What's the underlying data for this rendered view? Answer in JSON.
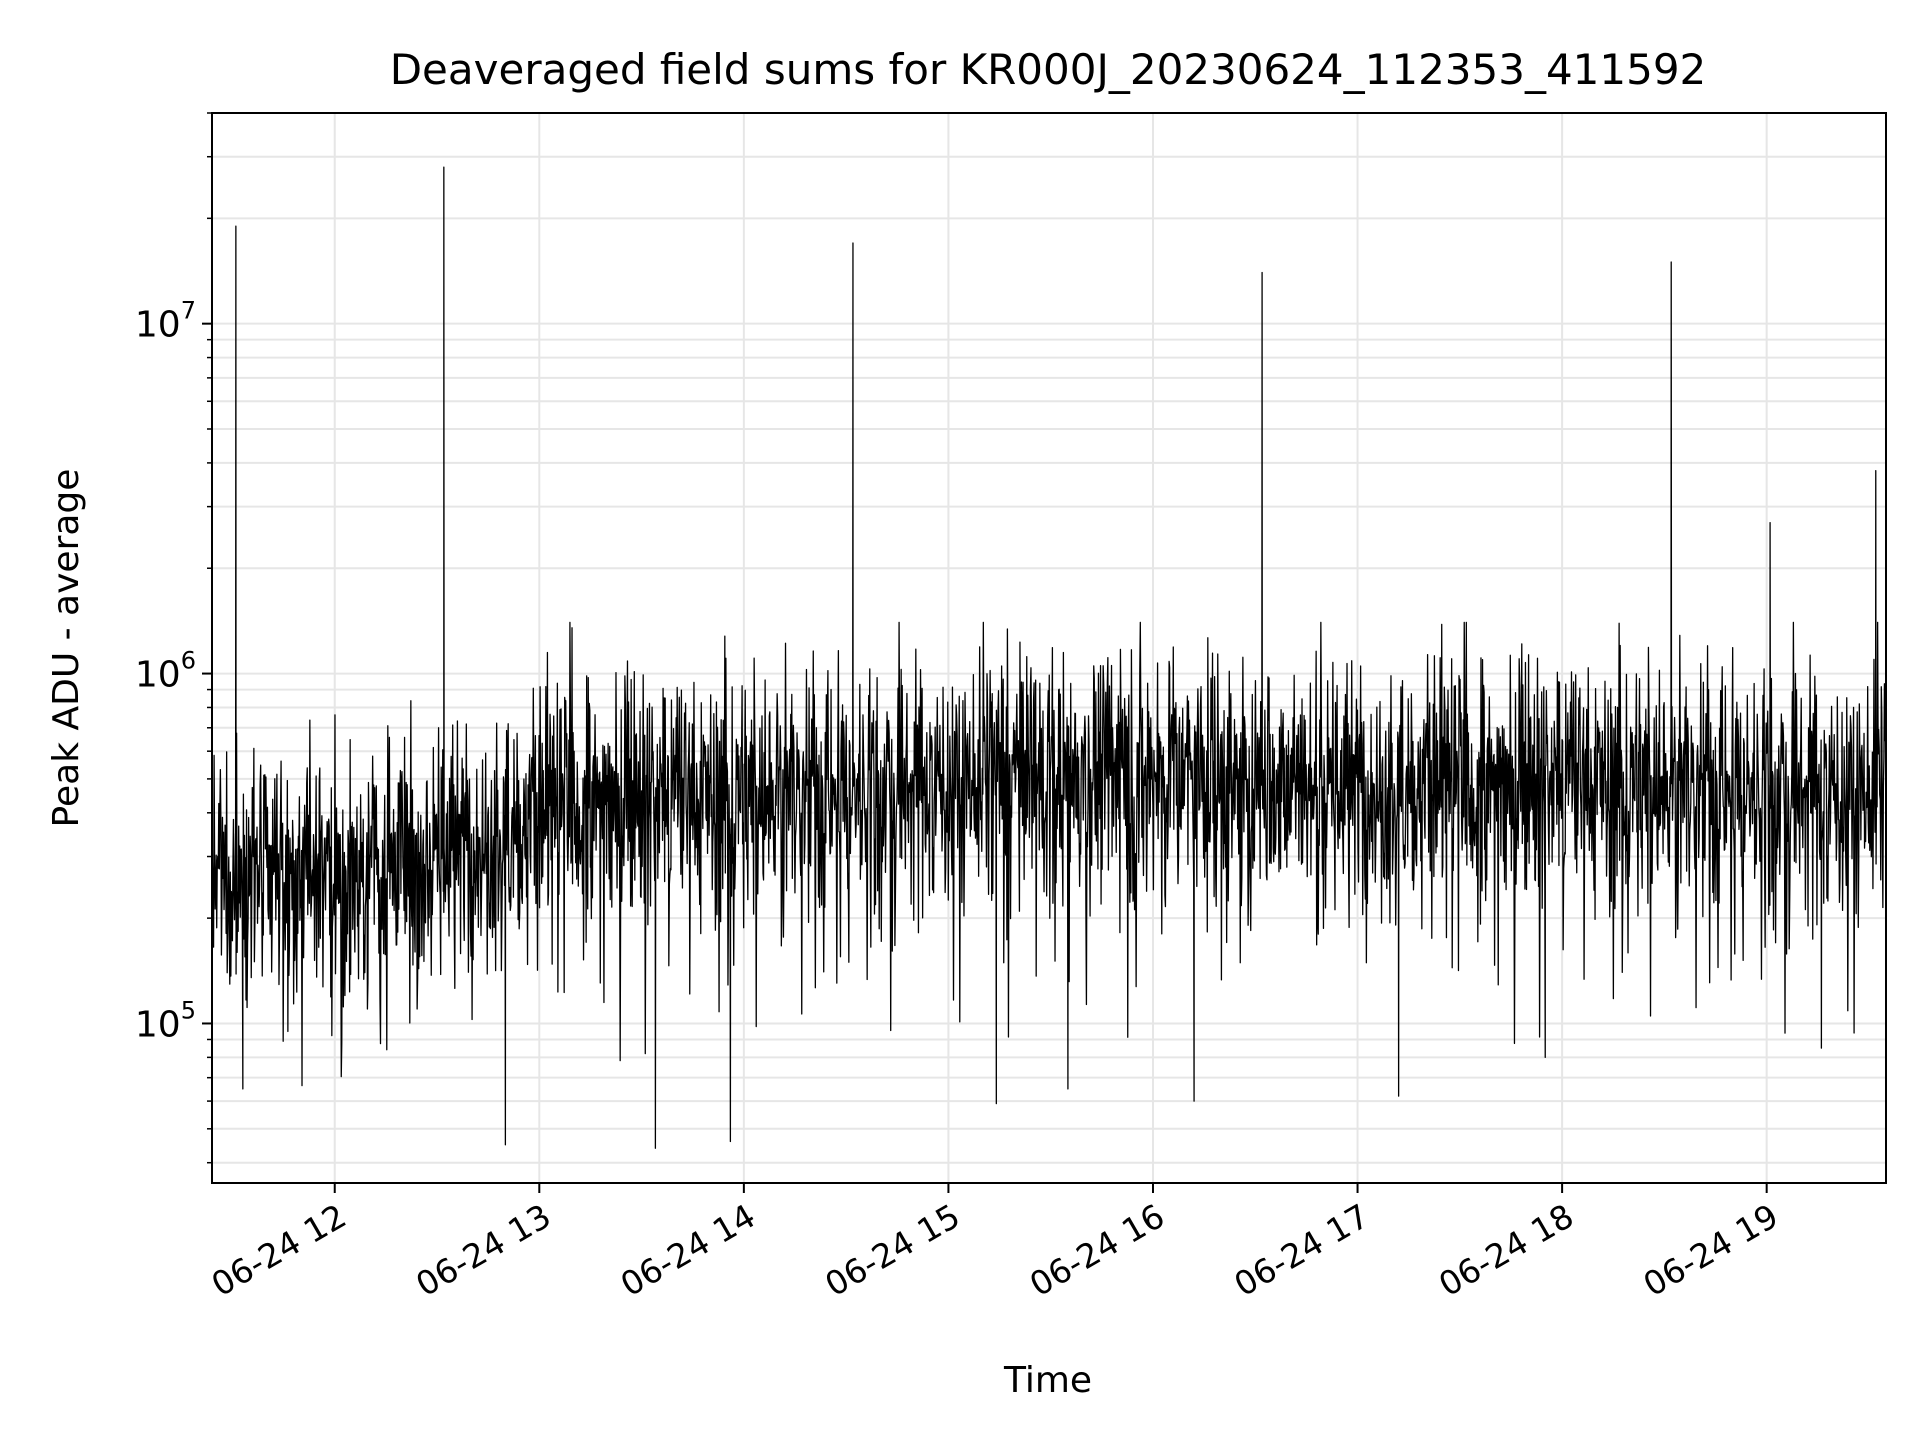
{
  "chart_data": {
    "type": "line",
    "title": "Deaveraged field sums for KR000J_20230624_112353_411592",
    "xlabel": "Time",
    "ylabel": "Peak ADU - average",
    "yscale": "log",
    "ylim": [
      35000,
      40000000
    ],
    "xlim": [
      "06-24 11:24",
      "06-24 19:35"
    ],
    "x_ticks": [
      {
        "t": "06-24 12:00",
        "label": "06-24 12"
      },
      {
        "t": "06-24 13:00",
        "label": "06-24 13"
      },
      {
        "t": "06-24 14:00",
        "label": "06-24 14"
      },
      {
        "t": "06-24 15:00",
        "label": "06-24 15"
      },
      {
        "t": "06-24 16:00",
        "label": "06-24 16"
      },
      {
        "t": "06-24 17:00",
        "label": "06-24 17"
      },
      {
        "t": "06-24 18:00",
        "label": "06-24 18"
      },
      {
        "t": "06-24 19:00",
        "label": "06-24 19"
      }
    ],
    "y_ticks": [
      {
        "value": 100000,
        "base": "10",
        "exp": "5"
      },
      {
        "value": 1000000,
        "base": "10",
        "exp": "6"
      },
      {
        "value": 10000000,
        "base": "10",
        "exp": "7"
      }
    ],
    "grid": true,
    "line_color": "#000000",
    "grid_color": "#e6e6e6",
    "series": [
      {
        "baseline_trend": [
          {
            "t": "06-24 11:24",
            "value": 260000
          },
          {
            "t": "06-24 12:00",
            "value": 270000
          },
          {
            "t": "06-24 12:40",
            "value": 330000
          },
          {
            "t": "06-24 13:10",
            "value": 430000
          },
          {
            "t": "06-24 14:00",
            "value": 450000
          },
          {
            "t": "06-24 15:00",
            "value": 500000
          },
          {
            "t": "06-24 16:00",
            "value": 510000
          },
          {
            "t": "06-24 17:00",
            "value": 480000
          },
          {
            "t": "06-24 18:00",
            "value": 490000
          },
          {
            "t": "06-24 19:00",
            "value": 480000
          },
          {
            "t": "06-24 19:35",
            "value": 460000
          }
        ],
        "spikes": [
          {
            "t": "06-24 11:31",
            "value": 19000000
          },
          {
            "t": "06-24 12:32",
            "value": 28000000
          },
          {
            "t": "06-24 14:32",
            "value": 17000000
          },
          {
            "t": "06-24 16:32",
            "value": 14000000
          },
          {
            "t": "06-24 18:32",
            "value": 15000000
          },
          {
            "t": "06-24 19:01",
            "value": 2700000
          },
          {
            "t": "06-24 19:32",
            "value": 3800000
          }
        ],
        "dips": [
          {
            "t": "06-24 11:33",
            "value": 65000
          },
          {
            "t": "06-24 12:50",
            "value": 45000
          },
          {
            "t": "06-24 13:34",
            "value": 44000
          },
          {
            "t": "06-24 13:56",
            "value": 46000
          },
          {
            "t": "06-24 15:14",
            "value": 59000
          },
          {
            "t": "06-24 15:35",
            "value": 65000
          },
          {
            "t": "06-24 16:12",
            "value": 60000
          },
          {
            "t": "06-24 17:12",
            "value": 62000
          },
          {
            "t": "06-24 17:55",
            "value": 80000
          },
          {
            "t": "06-24 19:16",
            "value": 85000
          }
        ]
      }
    ]
  }
}
